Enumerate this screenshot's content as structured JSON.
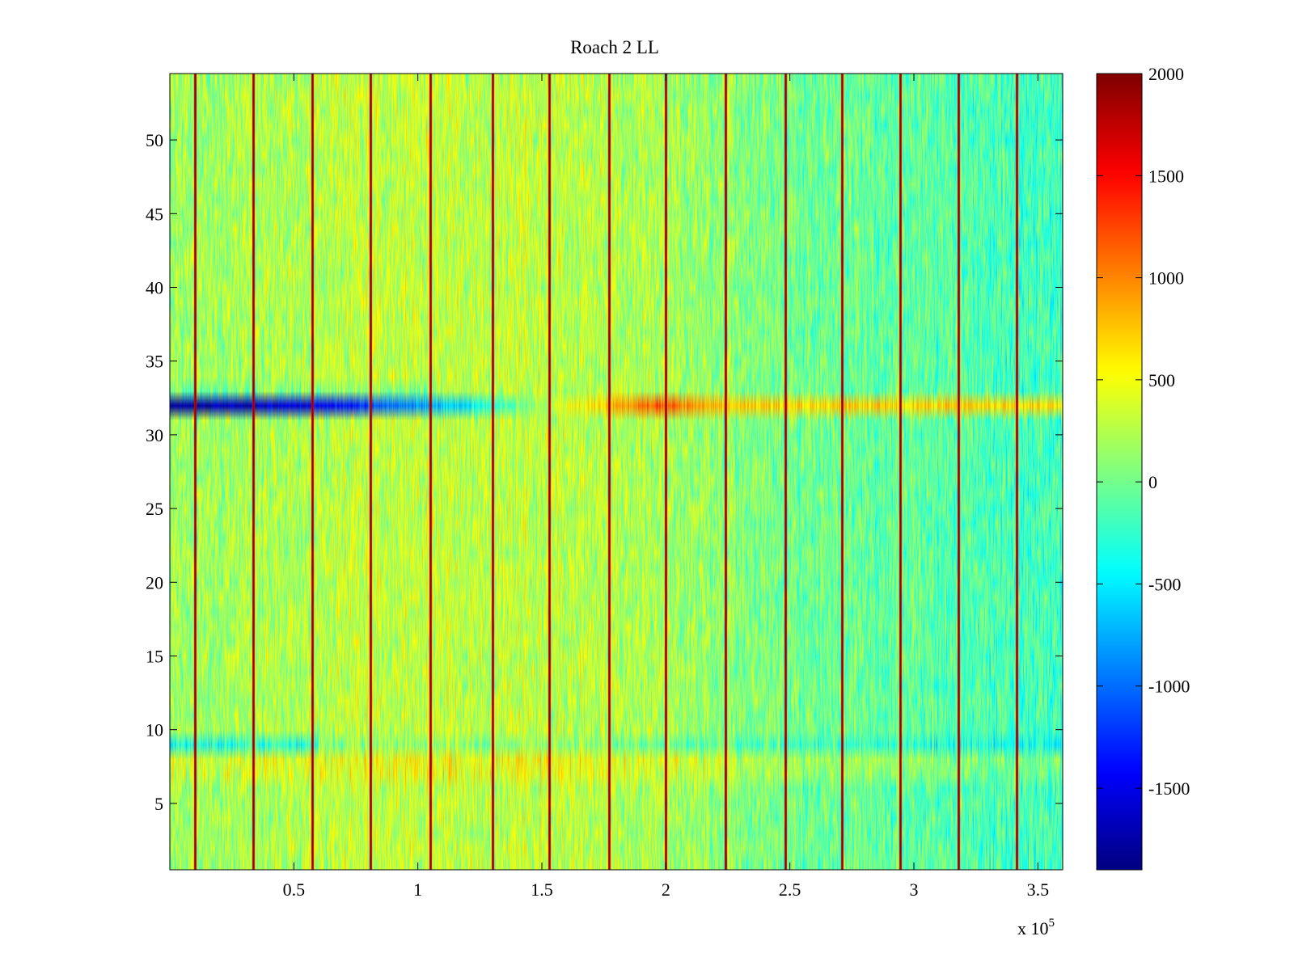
{
  "chart_data": {
    "type": "heatmap",
    "title": "Roach 2 LL",
    "xlabel": "",
    "ylabel": "",
    "x_exponent_label": {
      "base": "x 10",
      "exp": "5"
    },
    "xlim": [
      0,
      360000
    ],
    "ylim": [
      0.5,
      54.5
    ],
    "x_ticks": [
      {
        "value": 50000,
        "label": "0.5"
      },
      {
        "value": 100000,
        "label": "1"
      },
      {
        "value": 150000,
        "label": "1.5"
      },
      {
        "value": 200000,
        "label": "2"
      },
      {
        "value": 250000,
        "label": "2.5"
      },
      {
        "value": 300000,
        "label": "3"
      },
      {
        "value": 350000,
        "label": "3.5"
      }
    ],
    "y_ticks": [
      {
        "value": 5,
        "label": "5"
      },
      {
        "value": 10,
        "label": "10"
      },
      {
        "value": 15,
        "label": "15"
      },
      {
        "value": 20,
        "label": "20"
      },
      {
        "value": 25,
        "label": "25"
      },
      {
        "value": 30,
        "label": "30"
      },
      {
        "value": 35,
        "label": "35"
      },
      {
        "value": 40,
        "label": "40"
      },
      {
        "value": 45,
        "label": "45"
      },
      {
        "value": 50,
        "label": "50"
      }
    ],
    "rows": 54,
    "base_value": 150,
    "noise_amplitude": 600,
    "spike_columns_x": [
      10000,
      33500,
      57500,
      81000,
      105000,
      130000,
      153000,
      177000,
      200000,
      224000,
      248000,
      271000,
      294500,
      318000,
      341500
    ],
    "spike_value": 2000,
    "special_row": {
      "row": 32,
      "ramp": [
        {
          "x": 0,
          "value": -1800
        },
        {
          "x": 60000,
          "value": -1500
        },
        {
          "x": 110000,
          "value": -700
        },
        {
          "x": 150000,
          "value": 200
        },
        {
          "x": 195000,
          "value": 1200
        },
        {
          "x": 230000,
          "value": 700
        },
        {
          "x": 360000,
          "value": 700
        }
      ]
    },
    "row_offsets": [
      {
        "row": 9,
        "x_from": 0,
        "x_to": 60000,
        "value": -500
      },
      {
        "row": 9,
        "x_from": 60000,
        "x_to": 360000,
        "value": -200
      },
      {
        "row": 7,
        "x_from": 0,
        "x_to": 360000,
        "value": 150
      },
      {
        "row": 8,
        "x_from": 0,
        "x_to": 360000,
        "value": 200
      },
      {
        "row": 33,
        "x_from": 0,
        "x_to": 110000,
        "value": -200
      }
    ],
    "region_trend": [
      {
        "x": 0,
        "value": 0
      },
      {
        "x": 80000,
        "value": 150
      },
      {
        "x": 160000,
        "value": 150
      },
      {
        "x": 260000,
        "value": -150
      },
      {
        "x": 360000,
        "value": -350
      }
    ],
    "colorbar": {
      "colormap": "jet",
      "min": -1900,
      "max": 2000,
      "ticks": [
        {
          "value": 2000,
          "label": "2000"
        },
        {
          "value": 1500,
          "label": "1500"
        },
        {
          "value": 1000,
          "label": "1000"
        },
        {
          "value": 500,
          "label": "500"
        },
        {
          "value": 0,
          "label": "0"
        },
        {
          "value": -500,
          "label": "-500"
        },
        {
          "value": -1000,
          "label": "-1000"
        },
        {
          "value": -1500,
          "label": "-1500"
        }
      ]
    }
  }
}
